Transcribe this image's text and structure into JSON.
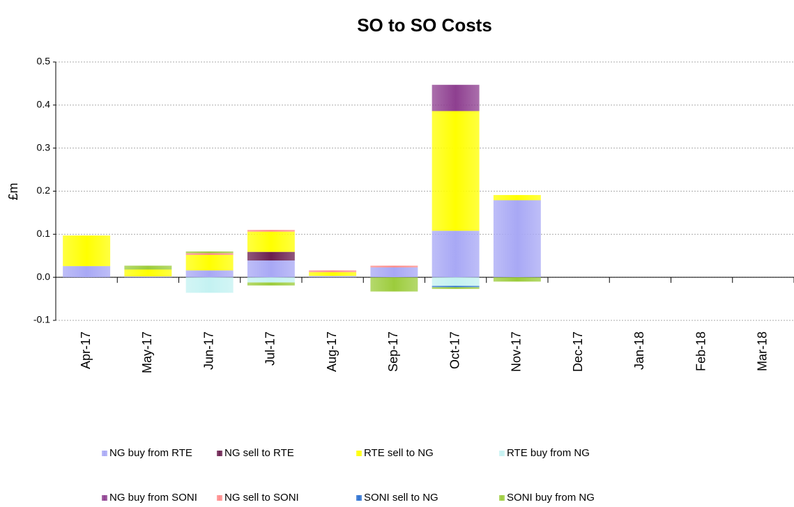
{
  "chart_data": {
    "type": "stacked_bar",
    "title": "SO to SO Costs",
    "y_label": "£m",
    "categories": [
      "Apr-17",
      "May-17",
      "Jun-17",
      "Jul-17",
      "Aug-17",
      "Sep-17",
      "Oct-17",
      "Nov-17",
      "Dec-17",
      "Jan-18",
      "Feb-18",
      "Mar-18"
    ],
    "series": [
      {
        "name": "NG buy from RTE",
        "color": "#a8a8f5",
        "values": [
          0.026,
          0.002,
          0.016,
          0.039,
          0.003,
          0.023,
          0.108,
          0.179,
          0,
          0,
          0,
          0
        ]
      },
      {
        "name": "NG sell to RTE",
        "color": "#6b1f4f",
        "values": [
          0,
          0,
          0,
          0.02,
          0,
          0,
          0,
          0,
          0,
          0,
          0,
          0
        ]
      },
      {
        "name": "RTE sell to NG",
        "color": "#ffff00",
        "values": [
          0.071,
          0.016,
          0.036,
          0.047,
          0.009,
          0,
          0.278,
          0.012,
          0,
          0,
          0,
          0
        ]
      },
      {
        "name": "RTE buy from NG",
        "color": "#c4f2f2",
        "values": [
          0,
          0,
          -0.036,
          -0.012,
          0,
          0,
          -0.02,
          0,
          0,
          0,
          0,
          0
        ]
      },
      {
        "name": "NG buy from SONI",
        "color": "#8e3f90",
        "values": [
          0,
          0,
          0,
          0,
          0,
          0,
          0.061,
          0,
          0,
          0,
          0,
          0
        ]
      },
      {
        "name": "NG sell to SONI",
        "color": "#ff8a8a",
        "values": [
          0,
          0,
          0.004,
          0.004,
          0.004,
          0.004,
          0,
          0,
          0,
          0,
          0,
          0
        ]
      },
      {
        "name": "SONI sell to NG",
        "color": "#2a6fd0",
        "values": [
          0,
          0,
          0,
          0,
          0,
          0,
          -0.003,
          0,
          0,
          0,
          0,
          0
        ]
      },
      {
        "name": "SONI buy from NG",
        "color": "#9ccc3c",
        "values": [
          0,
          0.009,
          0.004,
          -0.007,
          0,
          -0.033,
          -0.004,
          -0.01,
          0,
          0,
          0,
          0
        ]
      }
    ],
    "ylim": [
      -0.1,
      0.5
    ],
    "yticks": [
      -0.1,
      {
        "value": 0,
        "label": "0.0"
      },
      0.1,
      0.2,
      0.3,
      0.4,
      0.5
    ],
    "grid": true,
    "legend": "bottom"
  }
}
